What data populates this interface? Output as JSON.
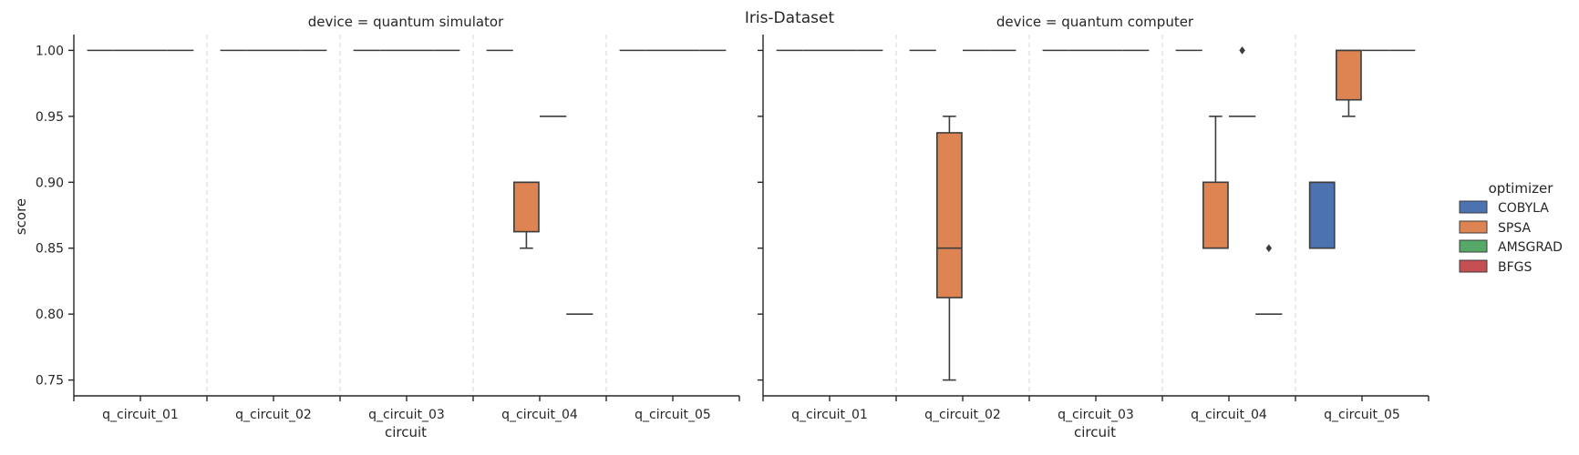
{
  "chart_data": {
    "type": "box",
    "title": "Iris-Dataset",
    "xlabel": "circuit",
    "ylabel": "score",
    "ylim": [
      0.738,
      1.012
    ],
    "yticks": [
      "0.75",
      "0.80",
      "0.85",
      "0.90",
      "0.95",
      "1.00"
    ],
    "ytick_values": [
      0.75,
      0.8,
      0.85,
      0.9,
      0.95,
      1.0
    ],
    "categories": [
      "q_circuit_01",
      "q_circuit_02",
      "q_circuit_03",
      "q_circuit_04",
      "q_circuit_05"
    ],
    "legend": {
      "title": "optimizer",
      "position": "right",
      "entries": [
        {
          "name": "COBYLA",
          "color": "#4c72b0"
        },
        {
          "name": "SPSA",
          "color": "#dd8452"
        },
        {
          "name": "AMSGRAD",
          "color": "#55a868"
        },
        {
          "name": "BFGS",
          "color": "#c44e52"
        }
      ]
    },
    "grid": "vertical dashed separators between categories",
    "panels": [
      {
        "title": "device = quantum simulator",
        "series": [
          {
            "name": "COBYLA",
            "boxes": [
              {
                "category": "q_circuit_01",
                "q1": 1.0,
                "median": 1.0,
                "q3": 1.0,
                "whisker_low": 1.0,
                "whisker_high": 1.0,
                "outliers": []
              },
              {
                "category": "q_circuit_02",
                "q1": 1.0,
                "median": 1.0,
                "q3": 1.0,
                "whisker_low": 1.0,
                "whisker_high": 1.0,
                "outliers": []
              },
              {
                "category": "q_circuit_03",
                "q1": 1.0,
                "median": 1.0,
                "q3": 1.0,
                "whisker_low": 1.0,
                "whisker_high": 1.0,
                "outliers": []
              },
              {
                "category": "q_circuit_04",
                "q1": 1.0,
                "median": 1.0,
                "q3": 1.0,
                "whisker_low": 1.0,
                "whisker_high": 1.0,
                "outliers": []
              },
              {
                "category": "q_circuit_05",
                "q1": 1.0,
                "median": 1.0,
                "q3": 1.0,
                "whisker_low": 1.0,
                "whisker_high": 1.0,
                "outliers": []
              }
            ]
          },
          {
            "name": "SPSA",
            "boxes": [
              {
                "category": "q_circuit_01",
                "q1": 1.0,
                "median": 1.0,
                "q3": 1.0,
                "whisker_low": 1.0,
                "whisker_high": 1.0,
                "outliers": []
              },
              {
                "category": "q_circuit_02",
                "q1": 1.0,
                "median": 1.0,
                "q3": 1.0,
                "whisker_low": 1.0,
                "whisker_high": 1.0,
                "outliers": []
              },
              {
                "category": "q_circuit_03",
                "q1": 1.0,
                "median": 1.0,
                "q3": 1.0,
                "whisker_low": 1.0,
                "whisker_high": 1.0,
                "outliers": []
              },
              {
                "category": "q_circuit_04",
                "q1": 0.8625,
                "median": 0.9,
                "q3": 0.9,
                "whisker_low": 0.85,
                "whisker_high": 0.9,
                "outliers": []
              },
              {
                "category": "q_circuit_05",
                "q1": 1.0,
                "median": 1.0,
                "q3": 1.0,
                "whisker_low": 1.0,
                "whisker_high": 1.0,
                "outliers": []
              }
            ]
          },
          {
            "name": "AMSGRAD",
            "boxes": [
              {
                "category": "q_circuit_01",
                "q1": 1.0,
                "median": 1.0,
                "q3": 1.0,
                "whisker_low": 1.0,
                "whisker_high": 1.0,
                "outliers": []
              },
              {
                "category": "q_circuit_02",
                "q1": 1.0,
                "median": 1.0,
                "q3": 1.0,
                "whisker_low": 1.0,
                "whisker_high": 1.0,
                "outliers": []
              },
              {
                "category": "q_circuit_03",
                "q1": 1.0,
                "median": 1.0,
                "q3": 1.0,
                "whisker_low": 1.0,
                "whisker_high": 1.0,
                "outliers": []
              },
              {
                "category": "q_circuit_04",
                "q1": 0.95,
                "median": 0.95,
                "q3": 0.95,
                "whisker_low": 0.95,
                "whisker_high": 0.95,
                "outliers": []
              },
              {
                "category": "q_circuit_05",
                "q1": 1.0,
                "median": 1.0,
                "q3": 1.0,
                "whisker_low": 1.0,
                "whisker_high": 1.0,
                "outliers": []
              }
            ]
          },
          {
            "name": "BFGS",
            "boxes": [
              {
                "category": "q_circuit_01",
                "q1": 1.0,
                "median": 1.0,
                "q3": 1.0,
                "whisker_low": 1.0,
                "whisker_high": 1.0,
                "outliers": []
              },
              {
                "category": "q_circuit_02",
                "q1": 1.0,
                "median": 1.0,
                "q3": 1.0,
                "whisker_low": 1.0,
                "whisker_high": 1.0,
                "outliers": []
              },
              {
                "category": "q_circuit_03",
                "q1": 1.0,
                "median": 1.0,
                "q3": 1.0,
                "whisker_low": 1.0,
                "whisker_high": 1.0,
                "outliers": []
              },
              {
                "category": "q_circuit_04",
                "q1": 0.8,
                "median": 0.8,
                "q3": 0.8,
                "whisker_low": 0.8,
                "whisker_high": 0.8,
                "outliers": []
              },
              {
                "category": "q_circuit_05",
                "q1": 1.0,
                "median": 1.0,
                "q3": 1.0,
                "whisker_low": 1.0,
                "whisker_high": 1.0,
                "outliers": []
              }
            ]
          }
        ]
      },
      {
        "title": "device = quantum computer",
        "series": [
          {
            "name": "COBYLA",
            "boxes": [
              {
                "category": "q_circuit_01",
                "q1": 1.0,
                "median": 1.0,
                "q3": 1.0,
                "whisker_low": 1.0,
                "whisker_high": 1.0,
                "outliers": []
              },
              {
                "category": "q_circuit_02",
                "q1": 1.0,
                "median": 1.0,
                "q3": 1.0,
                "whisker_low": 1.0,
                "whisker_high": 1.0,
                "outliers": []
              },
              {
                "category": "q_circuit_03",
                "q1": 1.0,
                "median": 1.0,
                "q3": 1.0,
                "whisker_low": 1.0,
                "whisker_high": 1.0,
                "outliers": []
              },
              {
                "category": "q_circuit_04",
                "q1": 1.0,
                "median": 1.0,
                "q3": 1.0,
                "whisker_low": 1.0,
                "whisker_high": 1.0,
                "outliers": []
              },
              {
                "category": "q_circuit_05",
                "q1": 0.85,
                "median": 0.9,
                "q3": 0.9,
                "whisker_low": 0.85,
                "whisker_high": 0.9,
                "outliers": []
              }
            ]
          },
          {
            "name": "SPSA",
            "boxes": [
              {
                "category": "q_circuit_01",
                "q1": 1.0,
                "median": 1.0,
                "q3": 1.0,
                "whisker_low": 1.0,
                "whisker_high": 1.0,
                "outliers": []
              },
              {
                "category": "q_circuit_02",
                "q1": 0.8125,
                "median": 0.85,
                "q3": 0.9375,
                "whisker_low": 0.75,
                "whisker_high": 0.95,
                "outliers": []
              },
              {
                "category": "q_circuit_03",
                "q1": 1.0,
                "median": 1.0,
                "q3": 1.0,
                "whisker_low": 1.0,
                "whisker_high": 1.0,
                "outliers": []
              },
              {
                "category": "q_circuit_04",
                "q1": 0.85,
                "median": 0.85,
                "q3": 0.9,
                "whisker_low": 0.85,
                "whisker_high": 0.95,
                "outliers": []
              },
              {
                "category": "q_circuit_05",
                "q1": 0.9625,
                "median": 1.0,
                "q3": 1.0,
                "whisker_low": 0.95,
                "whisker_high": 1.0,
                "outliers": []
              }
            ]
          },
          {
            "name": "AMSGRAD",
            "boxes": [
              {
                "category": "q_circuit_01",
                "q1": 1.0,
                "median": 1.0,
                "q3": 1.0,
                "whisker_low": 1.0,
                "whisker_high": 1.0,
                "outliers": []
              },
              {
                "category": "q_circuit_02",
                "q1": 1.0,
                "median": 1.0,
                "q3": 1.0,
                "whisker_low": 1.0,
                "whisker_high": 1.0,
                "outliers": []
              },
              {
                "category": "q_circuit_03",
                "q1": 1.0,
                "median": 1.0,
                "q3": 1.0,
                "whisker_low": 1.0,
                "whisker_high": 1.0,
                "outliers": []
              },
              {
                "category": "q_circuit_04",
                "q1": 0.95,
                "median": 0.95,
                "q3": 0.95,
                "whisker_low": 0.95,
                "whisker_high": 0.95,
                "outliers": [
                  1.0
                ]
              },
              {
                "category": "q_circuit_05",
                "q1": 1.0,
                "median": 1.0,
                "q3": 1.0,
                "whisker_low": 1.0,
                "whisker_high": 1.0,
                "outliers": []
              }
            ]
          },
          {
            "name": "BFGS",
            "boxes": [
              {
                "category": "q_circuit_01",
                "q1": 1.0,
                "median": 1.0,
                "q3": 1.0,
                "whisker_low": 1.0,
                "whisker_high": 1.0,
                "outliers": []
              },
              {
                "category": "q_circuit_02",
                "q1": 1.0,
                "median": 1.0,
                "q3": 1.0,
                "whisker_low": 1.0,
                "whisker_high": 1.0,
                "outliers": []
              },
              {
                "category": "q_circuit_03",
                "q1": 1.0,
                "median": 1.0,
                "q3": 1.0,
                "whisker_low": 1.0,
                "whisker_high": 1.0,
                "outliers": []
              },
              {
                "category": "q_circuit_04",
                "q1": 0.8,
                "median": 0.8,
                "q3": 0.8,
                "whisker_low": 0.8,
                "whisker_high": 0.8,
                "outliers": [
                  0.85
                ]
              },
              {
                "category": "q_circuit_05",
                "q1": 1.0,
                "median": 1.0,
                "q3": 1.0,
                "whisker_low": 1.0,
                "whisker_high": 1.0,
                "outliers": []
              }
            ]
          }
        ]
      }
    ]
  }
}
